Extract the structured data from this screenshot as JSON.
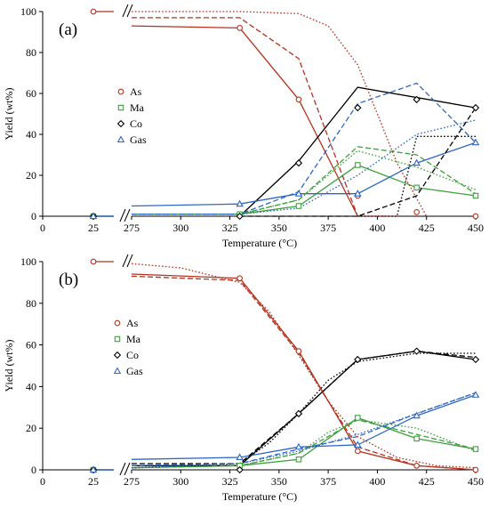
{
  "chart_data": [
    {
      "type": "line",
      "panel_label": "(a)",
      "xlabel": "Temperature (°C)",
      "ylabel": "Yield (wt%)",
      "ylim": [
        0,
        100
      ],
      "yticks": [
        0,
        20,
        40,
        60,
        80,
        100
      ],
      "xticks": [
        0,
        25,
        275,
        300,
        325,
        350,
        375,
        400,
        425,
        450
      ],
      "axis_break": "between 25 and 275",
      "legend_position": "left-center",
      "legend": [
        {
          "name": "As",
          "marker": "circle",
          "color": "#b5321f"
        },
        {
          "name": "Ma",
          "marker": "square",
          "color": "#3ca03c"
        },
        {
          "name": "Co",
          "marker": "diamond",
          "color": "#000000"
        },
        {
          "name": "Gas",
          "marker": "triangle",
          "color": "#2f66c4"
        }
      ],
      "series": [
        {
          "name": "As",
          "kind": "experimental",
          "color": "#b5321f",
          "marker": "circle",
          "x": [
            25,
            330,
            360,
            390,
            420,
            450
          ],
          "y": [
            100,
            92,
            57,
            10,
            2,
            0
          ]
        },
        {
          "name": "Ma",
          "kind": "experimental",
          "color": "#3ca03c",
          "marker": "square",
          "x": [
            25,
            330,
            360,
            390,
            420,
            450
          ],
          "y": [
            0,
            1,
            5,
            25,
            14,
            10
          ]
        },
        {
          "name": "Co",
          "kind": "experimental",
          "color": "#000000",
          "marker": "diamond",
          "x": [
            25,
            330,
            360,
            390,
            420,
            450
          ],
          "y": [
            0,
            0,
            26,
            53,
            57,
            53
          ]
        },
        {
          "name": "Gas",
          "kind": "experimental",
          "color": "#2f66c4",
          "marker": "triangle",
          "x": [
            25,
            330,
            360,
            390,
            420,
            450
          ],
          "y": [
            0,
            6,
            11,
            11,
            26,
            36
          ]
        },
        {
          "kind": "solid",
          "color": "#b5321f",
          "x": [
            275,
            330,
            360,
            390
          ],
          "y": [
            93,
            92,
            57,
            0
          ]
        },
        {
          "kind": "solid",
          "color": "#3ca03c",
          "x": [
            275,
            330,
            360,
            390,
            420,
            450
          ],
          "y": [
            1,
            1,
            5,
            25,
            14,
            10
          ]
        },
        {
          "kind": "solid",
          "color": "#000000",
          "x": [
            330,
            360,
            390,
            450
          ],
          "y": [
            0,
            27,
            63,
            53
          ]
        },
        {
          "kind": "solid",
          "color": "#2f66c4",
          "x": [
            275,
            330,
            360,
            390,
            420,
            450
          ],
          "y": [
            5,
            6,
            11,
            11,
            26,
            36
          ]
        },
        {
          "kind": "dashed",
          "color": "#b5321f",
          "x": [
            275,
            330,
            360,
            390,
            410
          ],
          "y": [
            97,
            97,
            77,
            0,
            0
          ]
        },
        {
          "kind": "dashed",
          "color": "#3ca03c",
          "x": [
            275,
            330,
            360,
            390,
            420,
            450
          ],
          "y": [
            1,
            1,
            8,
            34,
            30,
            11
          ]
        },
        {
          "kind": "dashed",
          "color": "#000000",
          "x": [
            330,
            360,
            390,
            420,
            450
          ],
          "y": [
            0,
            0,
            0,
            10,
            53
          ]
        },
        {
          "kind": "dashed",
          "color": "#2f66c4",
          "x": [
            275,
            330,
            360,
            390,
            420,
            450
          ],
          "y": [
            1,
            1,
            12,
            55,
            65,
            36
          ]
        },
        {
          "kind": "dotted",
          "color": "#b5321f",
          "x": [
            275,
            330,
            360,
            375,
            390,
            410,
            425
          ],
          "y": [
            100,
            100,
            99,
            93,
            74,
            26,
            0
          ]
        },
        {
          "kind": "dotted",
          "color": "#3ca03c",
          "x": [
            275,
            330,
            360,
            390,
            420,
            450
          ],
          "y": [
            1,
            1,
            8,
            32,
            24,
            13
          ]
        },
        {
          "kind": "dotted",
          "color": "#000000",
          "x": [
            390,
            410,
            420,
            450
          ],
          "y": [
            0,
            0,
            39,
            39
          ]
        },
        {
          "kind": "dotted",
          "color": "#2f66c4",
          "x": [
            275,
            330,
            360,
            390,
            420,
            450
          ],
          "y": [
            1,
            1,
            4,
            20,
            40,
            47
          ]
        }
      ]
    },
    {
      "type": "line",
      "panel_label": "(b)",
      "xlabel": "Temperature (°C)",
      "ylabel": "Yield (wt%)",
      "ylim": [
        0,
        100
      ],
      "yticks": [
        0,
        20,
        40,
        60,
        80,
        100
      ],
      "xticks": [
        0,
        25,
        275,
        300,
        325,
        350,
        375,
        400,
        425,
        450
      ],
      "axis_break": "between 25 and 275",
      "legend_position": "center",
      "legend": [
        {
          "name": "As",
          "marker": "circle",
          "color": "#b5321f"
        },
        {
          "name": "Ma",
          "marker": "square",
          "color": "#3ca03c"
        },
        {
          "name": "Co",
          "marker": "diamond",
          "color": "#000000"
        },
        {
          "name": "Gas",
          "marker": "triangle",
          "color": "#2f66c4"
        }
      ],
      "series": [
        {
          "name": "As",
          "kind": "experimental",
          "color": "#b5321f",
          "marker": "circle",
          "x": [
            25,
            330,
            360,
            390,
            420,
            450
          ],
          "y": [
            100,
            92,
            57,
            9,
            2,
            0
          ]
        },
        {
          "name": "Ma",
          "kind": "experimental",
          "color": "#3ca03c",
          "marker": "square",
          "x": [
            25,
            330,
            360,
            390,
            420,
            450
          ],
          "y": [
            0,
            2,
            5,
            25,
            15,
            10
          ]
        },
        {
          "name": "Co",
          "kind": "experimental",
          "color": "#000000",
          "marker": "diamond",
          "x": [
            25,
            330,
            360,
            390,
            420,
            450
          ],
          "y": [
            0,
            0,
            27,
            53,
            57,
            53
          ]
        },
        {
          "name": "Gas",
          "kind": "experimental",
          "color": "#2f66c4",
          "marker": "triangle",
          "x": [
            25,
            330,
            360,
            390,
            420,
            450
          ],
          "y": [
            0,
            6,
            11,
            12,
            26,
            36
          ]
        },
        {
          "kind": "solid",
          "color": "#b5321f",
          "x": [
            275,
            330,
            360,
            390,
            420,
            450
          ],
          "y": [
            94,
            92,
            57,
            9,
            2,
            0
          ]
        },
        {
          "kind": "solid",
          "color": "#3ca03c",
          "x": [
            275,
            330,
            360,
            390,
            420,
            450
          ],
          "y": [
            1,
            2,
            5,
            25,
            15,
            10
          ]
        },
        {
          "kind": "solid",
          "color": "#000000",
          "x": [
            275,
            330,
            360,
            390,
            420,
            450
          ],
          "y": [
            2,
            2,
            27,
            53,
            57,
            53
          ]
        },
        {
          "kind": "solid",
          "color": "#2f66c4",
          "x": [
            275,
            330,
            360,
            390,
            420,
            450
          ],
          "y": [
            5,
            6,
            11,
            12,
            26,
            36
          ]
        },
        {
          "kind": "dashed",
          "color": "#b5321f",
          "x": [
            275,
            330,
            360,
            375,
            390,
            420,
            450
          ],
          "y": [
            93,
            91,
            56,
            33,
            11,
            2,
            0
          ]
        },
        {
          "kind": "dashed",
          "color": "#3ca03c",
          "x": [
            275,
            330,
            360,
            390,
            420,
            450
          ],
          "y": [
            1,
            2,
            8,
            24,
            17,
            10
          ]
        },
        {
          "kind": "dashed",
          "color": "#000000",
          "x": [
            275,
            330,
            360,
            390,
            420,
            450
          ],
          "y": [
            3,
            3,
            27,
            53,
            57,
            54
          ]
        },
        {
          "kind": "dashed",
          "color": "#2f66c4",
          "x": [
            275,
            330,
            360,
            390,
            420,
            450
          ],
          "y": [
            2,
            3,
            10,
            16,
            27,
            37
          ]
        },
        {
          "kind": "dotted",
          "color": "#b5321f",
          "x": [
            275,
            300,
            330,
            345,
            360,
            375,
            390,
            410,
            430,
            450
          ],
          "y": [
            99,
            97,
            90,
            76,
            55,
            33,
            16,
            6,
            2,
            1
          ]
        },
        {
          "kind": "dotted",
          "color": "#3ca03c",
          "x": [
            275,
            330,
            360,
            375,
            390,
            420,
            450
          ],
          "y": [
            1,
            2,
            8,
            18,
            24,
            20,
            9
          ]
        },
        {
          "kind": "dotted",
          "color": "#000000",
          "x": [
            275,
            330,
            345,
            360,
            375,
            390,
            420,
            450
          ],
          "y": [
            1,
            3,
            13,
            27,
            43,
            52,
            56,
            56
          ]
        },
        {
          "kind": "dotted",
          "color": "#2f66c4",
          "x": [
            275,
            330,
            360,
            390,
            420,
            450
          ],
          "y": [
            1,
            3,
            9,
            17,
            27,
            37
          ]
        }
      ]
    }
  ]
}
